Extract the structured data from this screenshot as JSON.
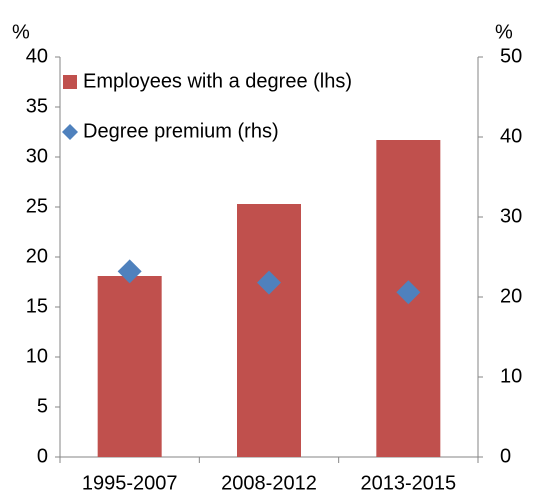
{
  "chart_data": {
    "type": "bar",
    "categories": [
      "1995-2007",
      "2008-2012",
      "2013-2015"
    ],
    "series": [
      {
        "name": "Employees with a degree (lhs)",
        "type": "bar",
        "color": "#c0504d",
        "values": [
          18.1,
          25.3,
          31.7
        ]
      },
      {
        "name": "Degree premium (rhs)",
        "type": "scatter",
        "axis": "y2",
        "color": "#4f81bd",
        "values": [
          23.2,
          21.8,
          20.6
        ]
      }
    ],
    "ylabel": "%",
    "y2label": "%",
    "ylim": [
      0,
      40
    ],
    "yticks": [
      0,
      5,
      10,
      15,
      20,
      25,
      30,
      35,
      40
    ],
    "y2lim": [
      0,
      50
    ],
    "y2ticks": [
      0,
      10,
      20,
      30,
      40,
      50
    ],
    "legend": "top-left",
    "grid": false
  }
}
